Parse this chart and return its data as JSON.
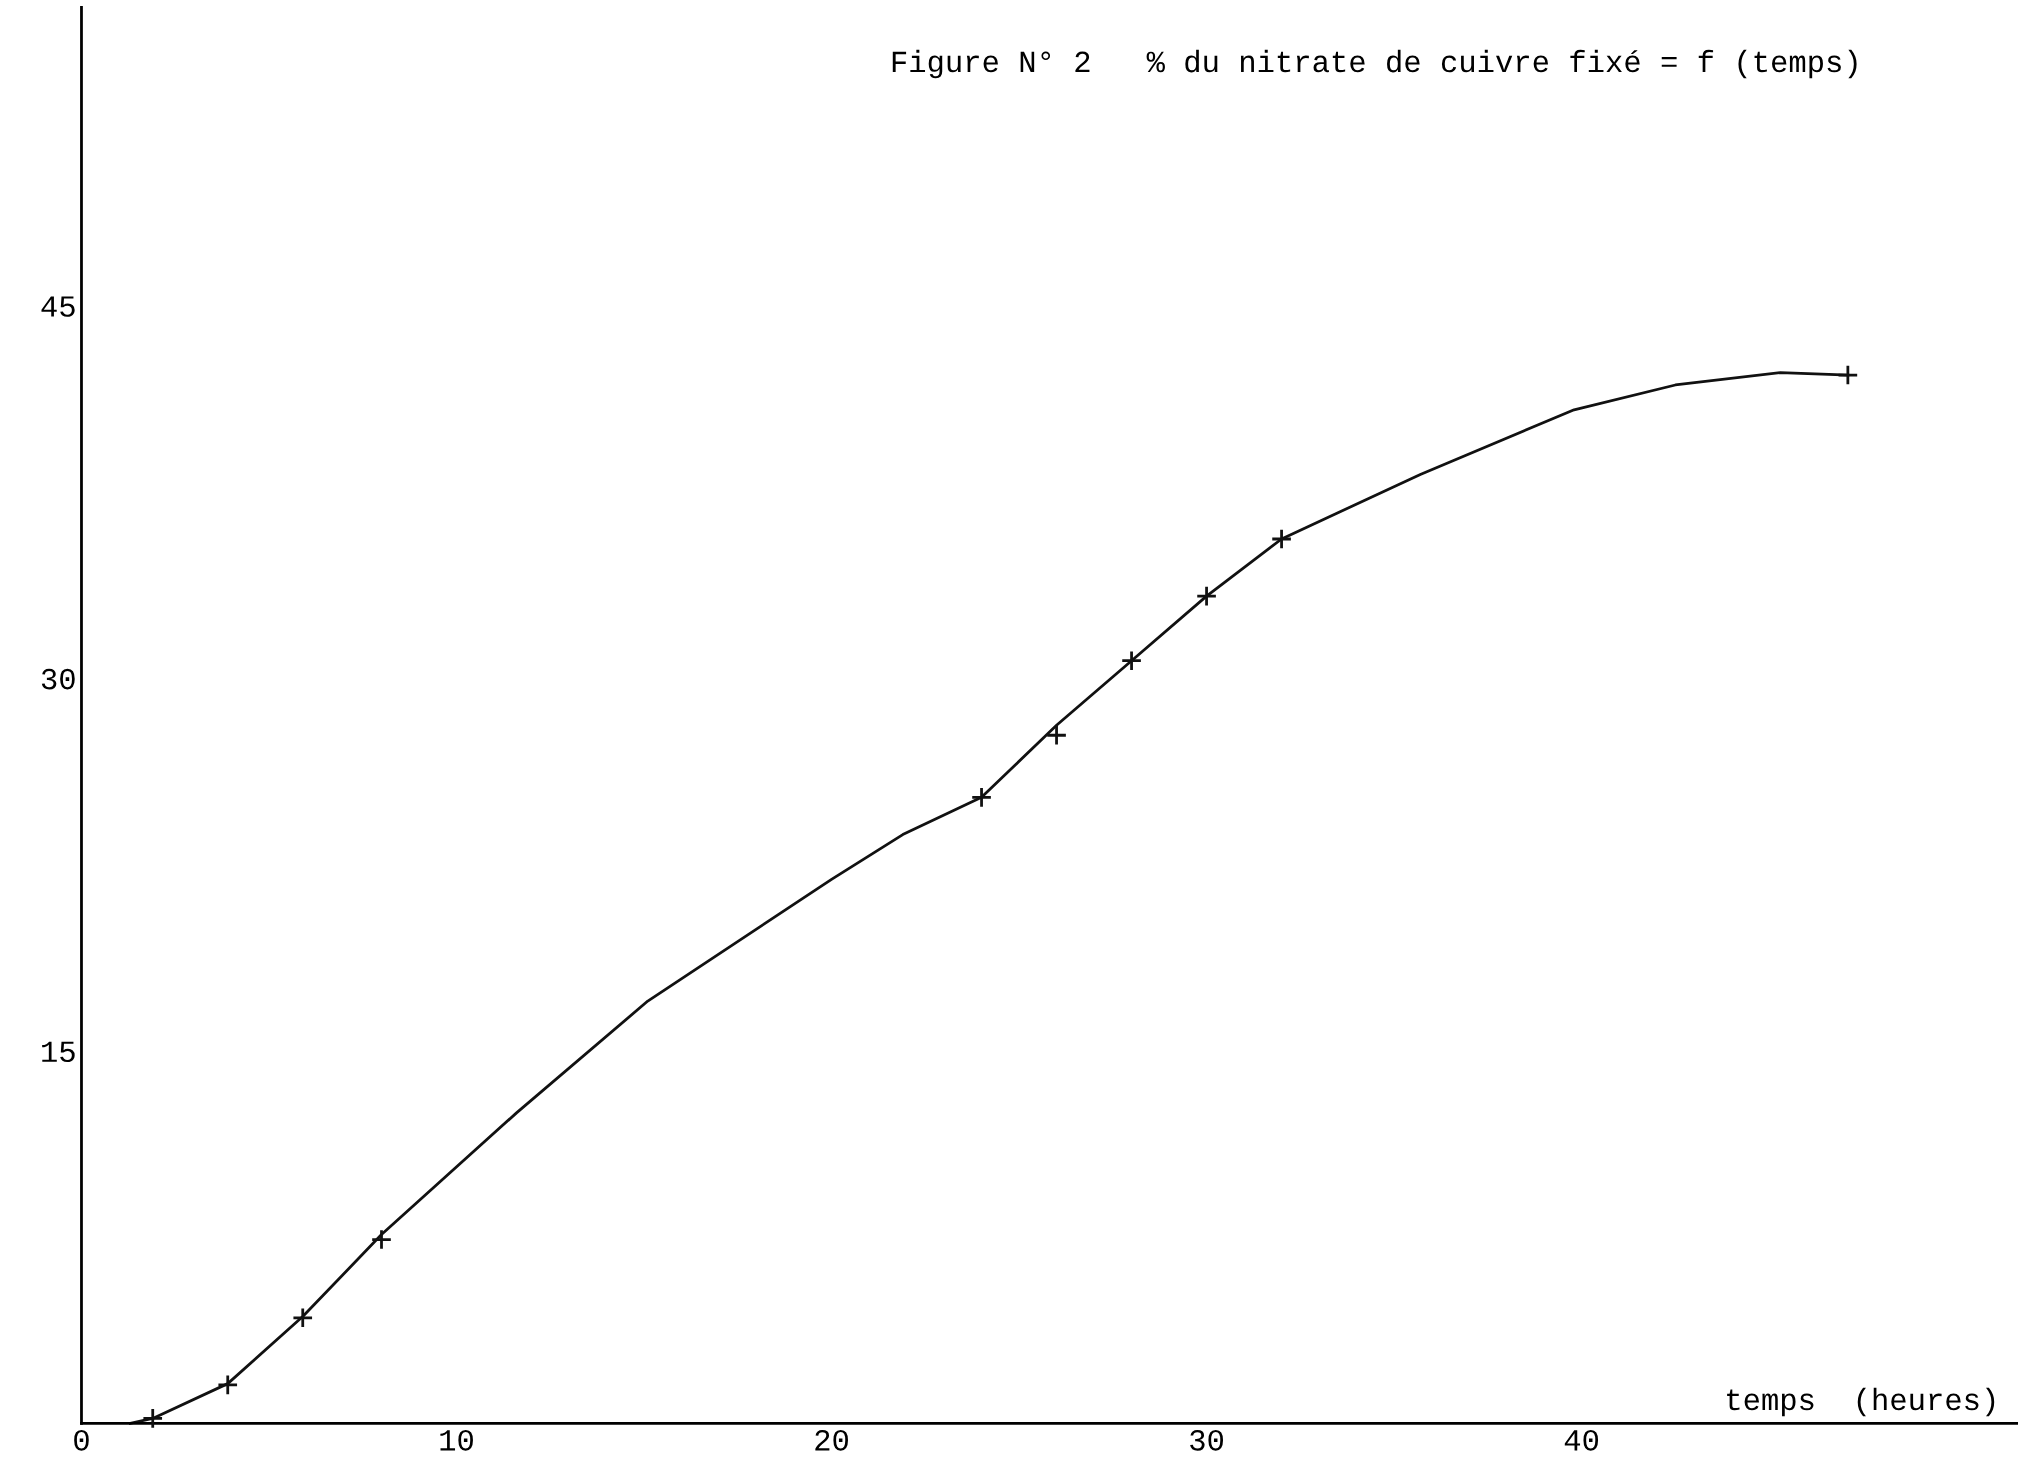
{
  "chart_data": {
    "type": "line",
    "title": "Figure N° 2   % du nitrate de cuivre fixé = f (temps)",
    "xlabel": "temps  (heures)",
    "xlim": [
      0,
      51.6
    ],
    "ylim": [
      0,
      57
    ],
    "xticks": [
      0,
      10,
      20,
      30,
      40
    ],
    "yticks": [
      15,
      30,
      45
    ],
    "grid": false,
    "series": [
      {
        "color": "#111111",
        "marker": "none",
        "line_style": "solid",
        "x": [
          1.3,
          1.9,
          3.9,
          5.9,
          8.0,
          11.6,
          15.1,
          20.0,
          21.9,
          24.0,
          26.0,
          28.0,
          30.0,
          32.0,
          35.7,
          39.8,
          42.5,
          45.3,
          47.1
        ],
        "values": [
          0,
          0.2,
          1.6,
          4.3,
          7.6,
          12.5,
          17.0,
          21.9,
          23.7,
          25.2,
          28.1,
          30.7,
          33.3,
          35.6,
          38.2,
          40.8,
          41.8,
          42.3,
          42.2
        ]
      },
      {
        "type": "scatter",
        "color": "#111111",
        "marker": "cross",
        "x": [
          1.9,
          3.9,
          5.9,
          8.0,
          24.0,
          26.0,
          28.0,
          30.0,
          32.0,
          47.1
        ],
        "values": [
          0.2,
          1.55,
          4.25,
          7.4,
          25.2,
          27.7,
          30.7,
          33.3,
          35.6,
          42.2
        ]
      }
    ]
  }
}
